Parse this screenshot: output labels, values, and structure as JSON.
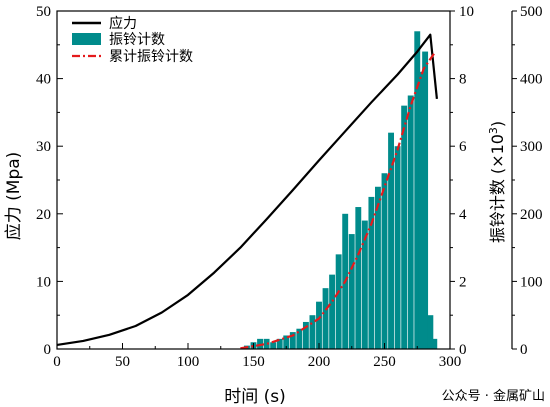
{
  "chart_data": {
    "type": "line+bar",
    "xlabel": "时间 (s)",
    "ylabel_left": "应力 (Mpa)",
    "ylabel_right": "振铃计数 (×10",
    "ylabel_right_sup": "3",
    "ylabel_right_close": ")",
    "xlim": [
      0,
      300
    ],
    "ylim_left": [
      0,
      50
    ],
    "ylim_right_inner": [
      0,
      10
    ],
    "ylim_right_outer": [
      0,
      500
    ],
    "x_ticks": [
      "0",
      "50",
      "100",
      "150",
      "200",
      "250",
      "300"
    ],
    "y_left_ticks": [
      "0",
      "10",
      "20",
      "30",
      "40",
      "50"
    ],
    "y_right_inner_ticks": [
      "0",
      "2",
      "4",
      "6",
      "8",
      "10"
    ],
    "y_right_outer_ticks": [
      "0",
      "100",
      "200",
      "300",
      "400",
      "500"
    ],
    "legend": [
      "应力",
      "振铃计数",
      "累计振铃计数"
    ],
    "legend_position": "top-left",
    "colors": {
      "stress": "#000000",
      "ringing": "#008b8b",
      "cumulative": "#e41a1c"
    },
    "series": [
      {
        "name": "应力",
        "axis": "left",
        "type": "line",
        "x": [
          0,
          20,
          40,
          60,
          80,
          100,
          120,
          140,
          160,
          180,
          200,
          220,
          240,
          260,
          275,
          285,
          290
        ],
        "y": [
          0.6,
          1.2,
          2.1,
          3.4,
          5.4,
          8.0,
          11.3,
          15.0,
          19.2,
          23.5,
          27.9,
          32.2,
          36.5,
          40.6,
          44.0,
          46.5,
          37.0
        ]
      },
      {
        "name": "振铃计数",
        "axis": "right-outer",
        "type": "bar",
        "x": [
          145,
          150,
          155,
          160,
          165,
          170,
          175,
          180,
          185,
          190,
          195,
          200,
          205,
          210,
          215,
          220,
          225,
          230,
          235,
          240,
          245,
          250,
          255,
          260,
          265,
          270,
          275,
          278,
          281,
          285,
          288
        ],
        "y": [
          5,
          10,
          15,
          15,
          10,
          15,
          20,
          25,
          30,
          40,
          50,
          70,
          90,
          110,
          140,
          200,
          170,
          210,
          190,
          225,
          240,
          260,
          320,
          300,
          360,
          375,
          470,
          410,
          440,
          50,
          15
        ]
      },
      {
        "name": "累计振铃计数",
        "axis": "right-inner",
        "type": "line",
        "x": [
          140,
          160,
          180,
          200,
          210,
          220,
          230,
          240,
          250,
          260,
          270,
          280,
          288
        ],
        "y": [
          0.02,
          0.15,
          0.4,
          0.9,
          1.4,
          2.0,
          2.8,
          3.7,
          4.8,
          5.9,
          7.2,
          8.3,
          8.75
        ]
      }
    ]
  },
  "watermark": "公众号 · 金属矿山"
}
